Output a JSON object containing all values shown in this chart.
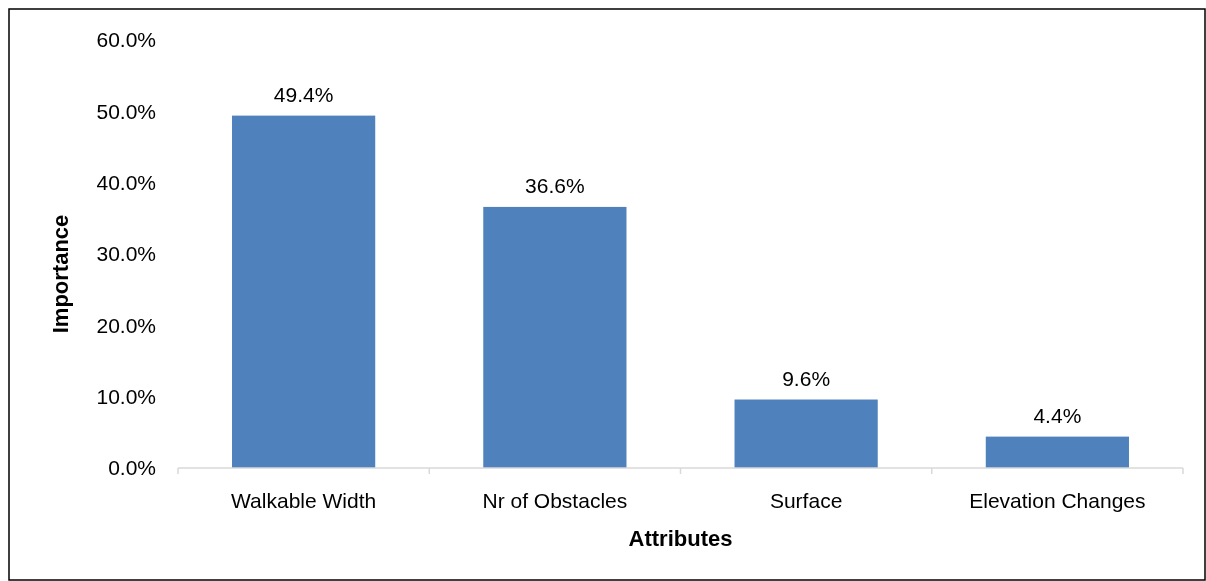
{
  "chart_data": {
    "type": "bar",
    "xlabel": "Attributes",
    "ylabel": "Importance",
    "categories": [
      "Walkable Width",
      "Nr of Obstacles",
      "Surface",
      "Elevation Changes"
    ],
    "values": [
      49.4,
      36.6,
      9.6,
      4.4
    ],
    "value_labels": [
      "49.4%",
      "36.6%",
      "9.6%",
      "4.4%"
    ],
    "color": "#4f81bd",
    "ylim": [
      0,
      60
    ],
    "yticks": [
      {
        "value": 0,
        "label": "0.0%"
      },
      {
        "value": 10,
        "label": "10.0%"
      },
      {
        "value": 20,
        "label": "20.0%"
      },
      {
        "value": 30,
        "label": "30.0%"
      },
      {
        "value": 40,
        "label": "40.0%"
      },
      {
        "value": 50,
        "label": "50.0%"
      },
      {
        "value": 60,
        "label": "60.0%"
      }
    ],
    "grid": false
  }
}
